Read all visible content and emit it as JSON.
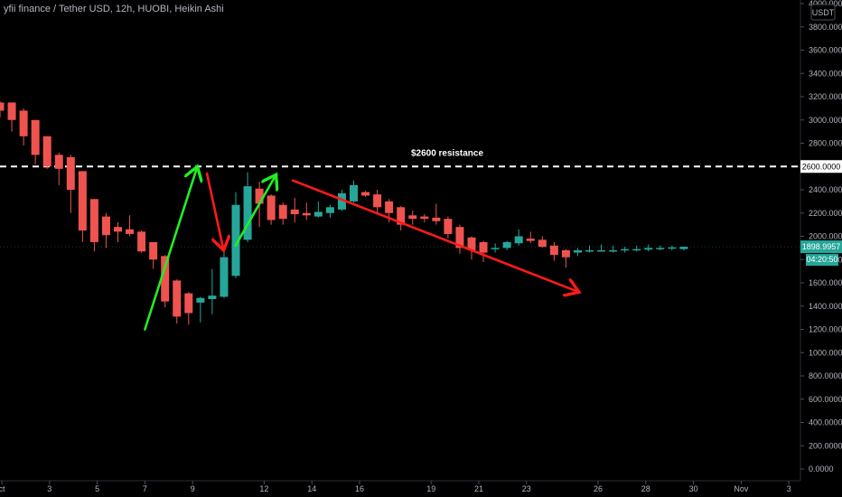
{
  "header": {
    "title": "yfii finance / Tether USD, 12h, HUOBI, Heikin Ashi"
  },
  "price_scale": {
    "currency": "USDT",
    "last_price_label": "1898.9957",
    "countdown_label": "04:20:50",
    "resistance_badge": "2600.0000"
  },
  "annotations": {
    "resistance_text": "$2600 resistance"
  },
  "colors": {
    "up": "#26a69a",
    "down": "#ef5350",
    "arrow_green": "#22ee22",
    "arrow_red": "#ff1a1a",
    "axis_text": "#b2b5be",
    "background": "#000000"
  },
  "chart_data": {
    "type": "candlestick",
    "style": "Heikin Ashi",
    "ylim": [
      0,
      4000
    ],
    "y_ticks": [
      0,
      200,
      400,
      600,
      800,
      1000,
      1200,
      1400,
      1600,
      1800,
      2000,
      2200,
      2400,
      2600,
      2800,
      3000,
      3200,
      3400,
      3600,
      3800,
      4000
    ],
    "y_tick_labels": [
      "0.0000",
      "200.0000",
      "400.0000",
      "600.0000",
      "800.0000",
      "1000.0000",
      "1200.0000",
      "1400.0000",
      "1600.0000",
      "1800.0000",
      "2000.0000",
      "2200.0000",
      "2400.0000",
      "2600.0000",
      "2800.0000",
      "3000.0000",
      "3200.0000",
      "3400.0000",
      "3600.0000",
      "3800.0000",
      "4000.0000"
    ],
    "x_ticks": [
      {
        "label": "ct",
        "day": 1
      },
      {
        "label": "3",
        "day": 3
      },
      {
        "label": "5",
        "day": 5
      },
      {
        "label": "7",
        "day": 7
      },
      {
        "label": "9",
        "day": 9
      },
      {
        "label": "12",
        "day": 12
      },
      {
        "label": "14",
        "day": 14
      },
      {
        "label": "16",
        "day": 16
      },
      {
        "label": "19",
        "day": 19
      },
      {
        "label": "21",
        "day": 21
      },
      {
        "label": "23",
        "day": 23
      },
      {
        "label": "26",
        "day": 26
      },
      {
        "label": "28",
        "day": 28
      },
      {
        "label": "30",
        "day": 30
      },
      {
        "label": "Nov",
        "day": 32
      },
      {
        "label": "3",
        "day": 34
      }
    ],
    "candles": [
      {
        "o": 3150,
        "h": 3160,
        "l": 3020,
        "c": 3080
      },
      {
        "o": 3150,
        "h": 3150,
        "l": 2900,
        "c": 3000
      },
      {
        "o": 3080,
        "h": 3100,
        "l": 2780,
        "c": 2860
      },
      {
        "o": 3000,
        "h": 3000,
        "l": 2620,
        "c": 2700
      },
      {
        "o": 2860,
        "h": 2860,
        "l": 2580,
        "c": 2600
      },
      {
        "o": 2700,
        "h": 2720,
        "l": 2440,
        "c": 2580
      },
      {
        "o": 2680,
        "h": 2700,
        "l": 2200,
        "c": 2400
      },
      {
        "o": 2560,
        "h": 2560,
        "l": 1950,
        "c": 2050
      },
      {
        "o": 2320,
        "h": 2320,
        "l": 1870,
        "c": 1950
      },
      {
        "o": 2170,
        "h": 2200,
        "l": 1900,
        "c": 2010
      },
      {
        "o": 2080,
        "h": 2120,
        "l": 1950,
        "c": 2040
      },
      {
        "o": 2060,
        "h": 2180,
        "l": 2000,
        "c": 2020
      },
      {
        "o": 2040,
        "h": 2050,
        "l": 1860,
        "c": 1870
      },
      {
        "o": 1950,
        "h": 1950,
        "l": 1720,
        "c": 1800
      },
      {
        "o": 1830,
        "h": 1840,
        "l": 1390,
        "c": 1440
      },
      {
        "o": 1620,
        "h": 1630,
        "l": 1250,
        "c": 1310
      },
      {
        "o": 1510,
        "h": 1520,
        "l": 1240,
        "c": 1340
      },
      {
        "o": 1430,
        "h": 1480,
        "l": 1260,
        "c": 1470
      },
      {
        "o": 1460,
        "h": 1720,
        "l": 1330,
        "c": 1490
      },
      {
        "o": 1480,
        "h": 1920,
        "l": 1470,
        "c": 1820
      },
      {
        "o": 1660,
        "h": 2380,
        "l": 1640,
        "c": 2270
      },
      {
        "o": 1970,
        "h": 2550,
        "l": 1950,
        "c": 2430
      },
      {
        "o": 2410,
        "h": 2470,
        "l": 2080,
        "c": 2280
      },
      {
        "o": 2350,
        "h": 2360,
        "l": 2100,
        "c": 2140
      },
      {
        "o": 2270,
        "h": 2290,
        "l": 2100,
        "c": 2150
      },
      {
        "o": 2230,
        "h": 2330,
        "l": 2120,
        "c": 2190
      },
      {
        "o": 2200,
        "h": 2290,
        "l": 2140,
        "c": 2180
      },
      {
        "o": 2170,
        "h": 2300,
        "l": 2160,
        "c": 2210
      },
      {
        "o": 2200,
        "h": 2270,
        "l": 2160,
        "c": 2250
      },
      {
        "o": 2230,
        "h": 2400,
        "l": 2220,
        "c": 2370
      },
      {
        "o": 2300,
        "h": 2480,
        "l": 2290,
        "c": 2440
      },
      {
        "o": 2380,
        "h": 2390,
        "l": 2340,
        "c": 2350
      },
      {
        "o": 2360,
        "h": 2400,
        "l": 2200,
        "c": 2250
      },
      {
        "o": 2300,
        "h": 2320,
        "l": 2120,
        "c": 2200
      },
      {
        "o": 2250,
        "h": 2260,
        "l": 2050,
        "c": 2100
      },
      {
        "o": 2180,
        "h": 2220,
        "l": 2100,
        "c": 2150
      },
      {
        "o": 2170,
        "h": 2190,
        "l": 2120,
        "c": 2150
      },
      {
        "o": 2160,
        "h": 2280,
        "l": 2100,
        "c": 2130
      },
      {
        "o": 2150,
        "h": 2170,
        "l": 1980,
        "c": 2020
      },
      {
        "o": 2080,
        "h": 2100,
        "l": 1850,
        "c": 1900
      },
      {
        "o": 1990,
        "h": 2000,
        "l": 1800,
        "c": 1880
      },
      {
        "o": 1950,
        "h": 1960,
        "l": 1780,
        "c": 1860
      },
      {
        "o": 1900,
        "h": 1940,
        "l": 1860,
        "c": 1900
      },
      {
        "o": 1900,
        "h": 1960,
        "l": 1880,
        "c": 1950
      },
      {
        "o": 1940,
        "h": 2060,
        "l": 1920,
        "c": 2000
      },
      {
        "o": 1980,
        "h": 2040,
        "l": 1940,
        "c": 1960
      },
      {
        "o": 1970,
        "h": 2000,
        "l": 1900,
        "c": 1910
      },
      {
        "o": 1920,
        "h": 1950,
        "l": 1790,
        "c": 1840
      },
      {
        "o": 1880,
        "h": 1890,
        "l": 1730,
        "c": 1820
      },
      {
        "o": 1860,
        "h": 1900,
        "l": 1830,
        "c": 1880
      },
      {
        "o": 1870,
        "h": 1920,
        "l": 1860,
        "c": 1880
      },
      {
        "o": 1880,
        "h": 1930,
        "l": 1870,
        "c": 1880
      },
      {
        "o": 1880,
        "h": 1920,
        "l": 1860,
        "c": 1880
      },
      {
        "o": 1880,
        "h": 1910,
        "l": 1860,
        "c": 1890
      },
      {
        "o": 1880,
        "h": 1920,
        "l": 1870,
        "c": 1890
      },
      {
        "o": 1885,
        "h": 1930,
        "l": 1870,
        "c": 1900
      },
      {
        "o": 1890,
        "h": 1920,
        "l": 1880,
        "c": 1900
      },
      {
        "o": 1895,
        "h": 1920,
        "l": 1880,
        "c": 1905
      },
      {
        "o": 1890,
        "h": 1910,
        "l": 1880,
        "c": 1910
      }
    ],
    "resistance_level": 2600,
    "arrows": [
      {
        "color": "green",
        "from": [
          7,
          1200
        ],
        "to": [
          9.2,
          2600
        ]
      },
      {
        "color": "red",
        "from": [
          9.6,
          2540
        ],
        "to": [
          10.3,
          1880
        ]
      },
      {
        "color": "green",
        "from": [
          10.8,
          1920
        ],
        "to": [
          12.5,
          2530
        ]
      },
      {
        "color": "red",
        "from": [
          13.2,
          2480
        ],
        "to": [
          25.2,
          1520
        ]
      }
    ]
  }
}
